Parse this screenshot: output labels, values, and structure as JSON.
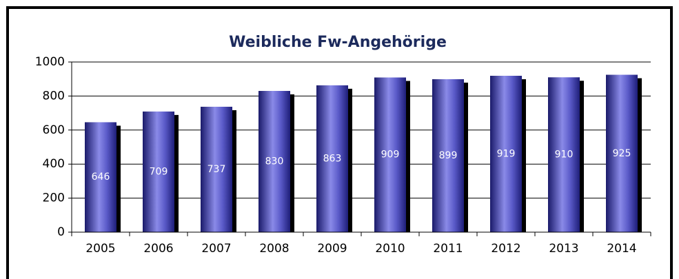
{
  "chart_data": {
    "type": "bar",
    "title": "Weibliche Fw-Angehörige",
    "categories": [
      "2005",
      "2006",
      "2007",
      "2008",
      "2009",
      "2010",
      "2011",
      "2012",
      "2013",
      "2014"
    ],
    "values": [
      646,
      709,
      737,
      830,
      863,
      909,
      899,
      919,
      910,
      925
    ],
    "color": "#5050c0",
    "ylim": [
      0,
      1000
    ],
    "yticks": [
      0,
      200,
      400,
      600,
      800,
      1000
    ],
    "grid": true
  }
}
